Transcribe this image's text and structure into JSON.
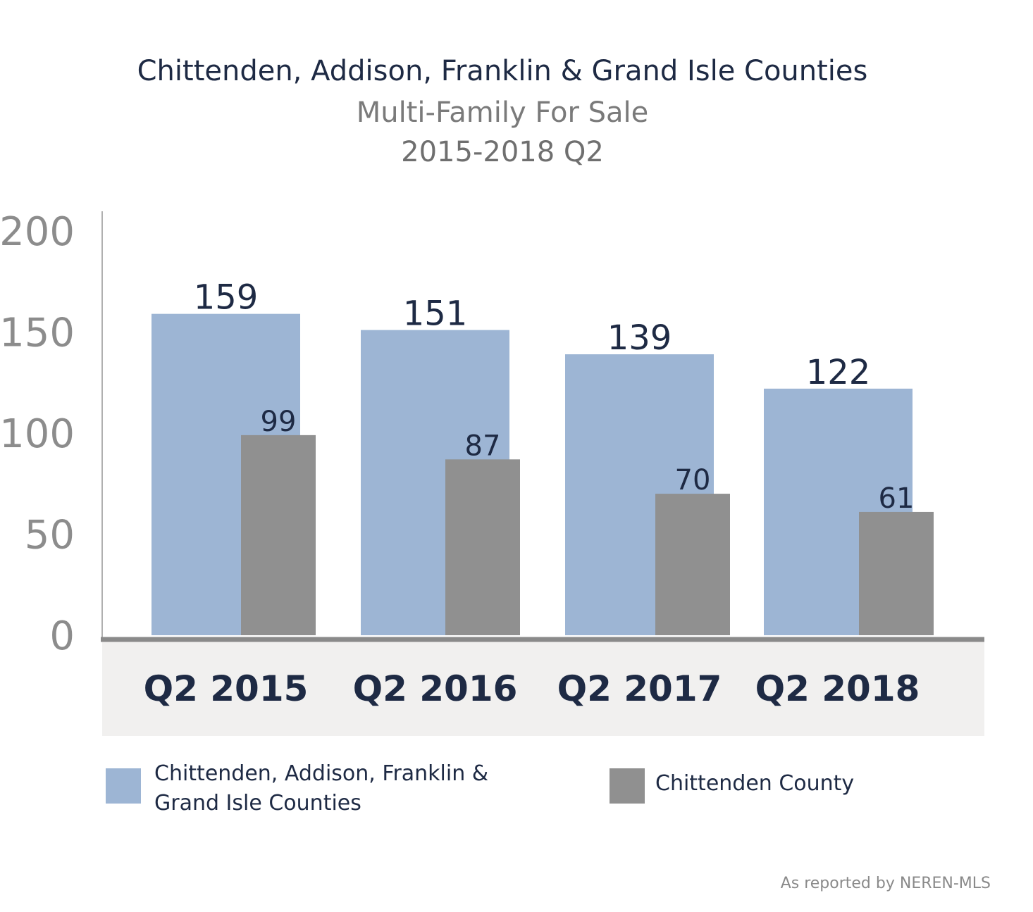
{
  "chart_data": {
    "type": "bar",
    "title": "Chittenden, Addison, Franklin & Grand Isle Counties",
    "subtitle": [
      "Multi-Family For Sale",
      "2015-2018 Q2"
    ],
    "categories": [
      "Q2 2015",
      "Q2 2016",
      "Q2 2017",
      "Q2 2018"
    ],
    "series": [
      {
        "name": "Chittenden, Addison, Franklin & Grand Isle Counties",
        "values": [
          159,
          151,
          139,
          122
        ],
        "color": "#9db5d4"
      },
      {
        "name": "Chittenden County",
        "values": [
          99,
          87,
          70,
          61
        ],
        "color": "#909090"
      }
    ],
    "yticks": [
      "0",
      "50",
      "100",
      "150",
      "200"
    ],
    "ylim": [
      0,
      200
    ],
    "grid": false,
    "legend_position": "bottom"
  },
  "legend": {
    "item1_line1": "Chittenden, Addison, Franklin &",
    "item1_line2": "Grand Isle Counties",
    "item2": "Chittenden County"
  },
  "source": "As reported by NEREN-MLS",
  "colors": {
    "title": "#1e2a44",
    "subtitle": "#7a7a7a",
    "axis_band": "#f1f0ef",
    "axis_line": "#8a8a8a",
    "tick_label": "#8c8c8c"
  }
}
